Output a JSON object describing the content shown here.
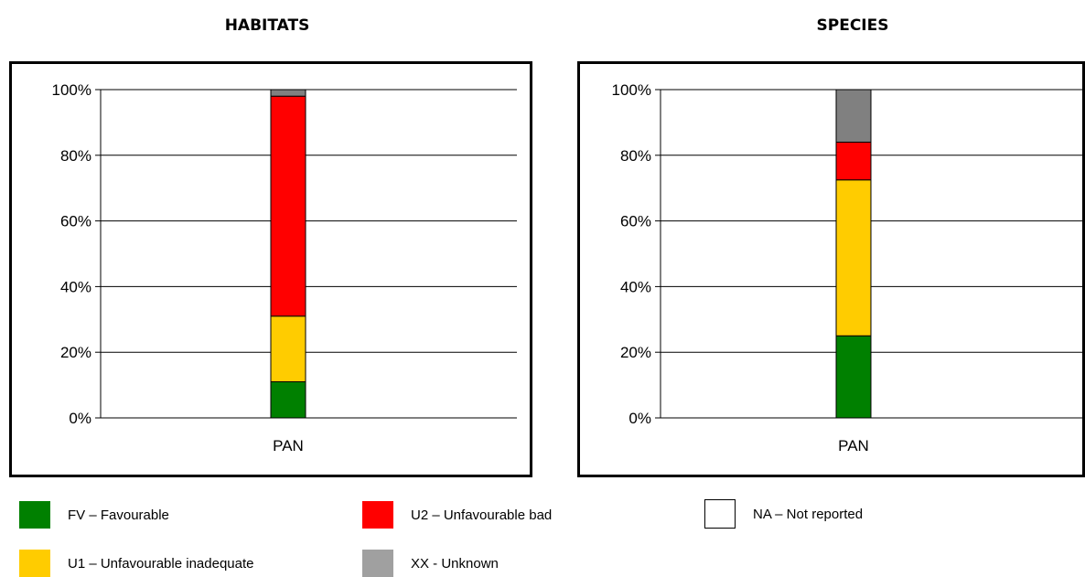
{
  "chart_data": [
    {
      "type": "bar",
      "stacked": true,
      "title": "HABITATS",
      "categories": [
        "PAN"
      ],
      "ylim": [
        0,
        100
      ],
      "yticks": [
        "0%",
        "20%",
        "40%",
        "60%",
        "80%",
        "100%"
      ],
      "grid": true,
      "series": [
        {
          "name": "FV – Favourable",
          "values": [
            11
          ],
          "color": "#008000"
        },
        {
          "name": "U1 – Unfavourable inadequate",
          "values": [
            20
          ],
          "color": "#FFCC00"
        },
        {
          "name": "U2 – Unfavourable bad",
          "values": [
            67
          ],
          "color": "#FF0000"
        },
        {
          "name": "XX - Unknown",
          "values": [
            2
          ],
          "color": "#808080"
        }
      ]
    },
    {
      "type": "bar",
      "stacked": true,
      "title": "SPECIES",
      "categories": [
        "PAN"
      ],
      "ylim": [
        0,
        100
      ],
      "yticks": [
        "0%",
        "20%",
        "40%",
        "60%",
        "80%",
        "100%"
      ],
      "grid": true,
      "series": [
        {
          "name": "FV – Favourable",
          "values": [
            25
          ],
          "color": "#008000"
        },
        {
          "name": "U1 – Unfavourable inadequate",
          "values": [
            47.5
          ],
          "color": "#FFCC00"
        },
        {
          "name": "U2 – Unfavourable bad",
          "values": [
            11.5
          ],
          "color": "#FF0000"
        },
        {
          "name": "XX - Unknown",
          "values": [
            16
          ],
          "color": "#808080"
        }
      ]
    }
  ],
  "legend": {
    "items": [
      {
        "label": "FV – Favourable",
        "color": "#008000"
      },
      {
        "label": "U2 – Unfavourable bad",
        "color": "#FF0000"
      },
      {
        "label": "NA – Not reported",
        "color": "#FFFFFF"
      },
      {
        "label": "U1 – Unfavourable inadequate",
        "color": "#FFCC00"
      },
      {
        "label": "XX - Unknown",
        "color": "#A0A0A0"
      }
    ]
  }
}
